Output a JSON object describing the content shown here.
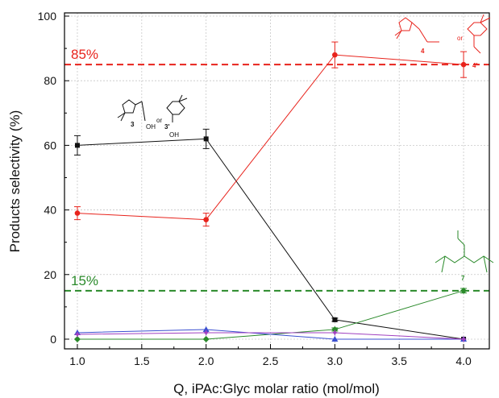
{
  "chart_data": {
    "type": "line",
    "xlabel": "Q, iPAc:Glyc molar ratio (mol/mol)",
    "ylabel": "Products selectivity (%)",
    "xlim": [
      0.9,
      4.2
    ],
    "ylim": [
      -3,
      101
    ],
    "x_ticks": [
      "1.0",
      "1.5",
      "2.0",
      "2.5",
      "3.0",
      "3.5",
      "4.0"
    ],
    "y_ticks": [
      "0",
      "20",
      "40",
      "60",
      "80",
      "100"
    ],
    "grid": true,
    "x": [
      1.0,
      2.0,
      3.0,
      4.0
    ],
    "series": [
      {
        "color": "#111111",
        "marker": "square",
        "values": [
          60,
          62,
          6,
          0
        ],
        "errors": [
          3,
          3,
          0.5,
          0
        ]
      },
      {
        "color": "#e8231c",
        "marker": "circle",
        "values": [
          39,
          37,
          88,
          85
        ],
        "errors": [
          2,
          2,
          4,
          4
        ]
      },
      {
        "color": "#2a8a2a",
        "marker": "diamond",
        "values": [
          0,
          0,
          3,
          15
        ],
        "errors": [
          0,
          0,
          0.5,
          0.7
        ]
      },
      {
        "color": "#3a4fd0",
        "marker": "triangle",
        "values": [
          2,
          3,
          0,
          0
        ],
        "errors": [
          0,
          0,
          0,
          0
        ]
      },
      {
        "color": "#a040c0",
        "marker": "star",
        "values": [
          1.5,
          2,
          2,
          0
        ],
        "errors": [
          0,
          0,
          0,
          0
        ]
      }
    ],
    "reference_lines": [
      {
        "y": 85,
        "label": "85%",
        "color": "#e8231c",
        "style": "dashed"
      },
      {
        "y": 15,
        "label": "15%",
        "color": "#2a8a2a",
        "style": "dashed"
      }
    ],
    "annotations": [
      {
        "compound_a": "3",
        "separator": "or",
        "compound_b": "3'",
        "group": "OH",
        "color": "#111111"
      },
      {
        "compound_a": "4",
        "separator": "or",
        "compound_b": "4'",
        "color": "#e8231c"
      },
      {
        "compound": "7",
        "color": "#2a8a2a"
      }
    ]
  }
}
